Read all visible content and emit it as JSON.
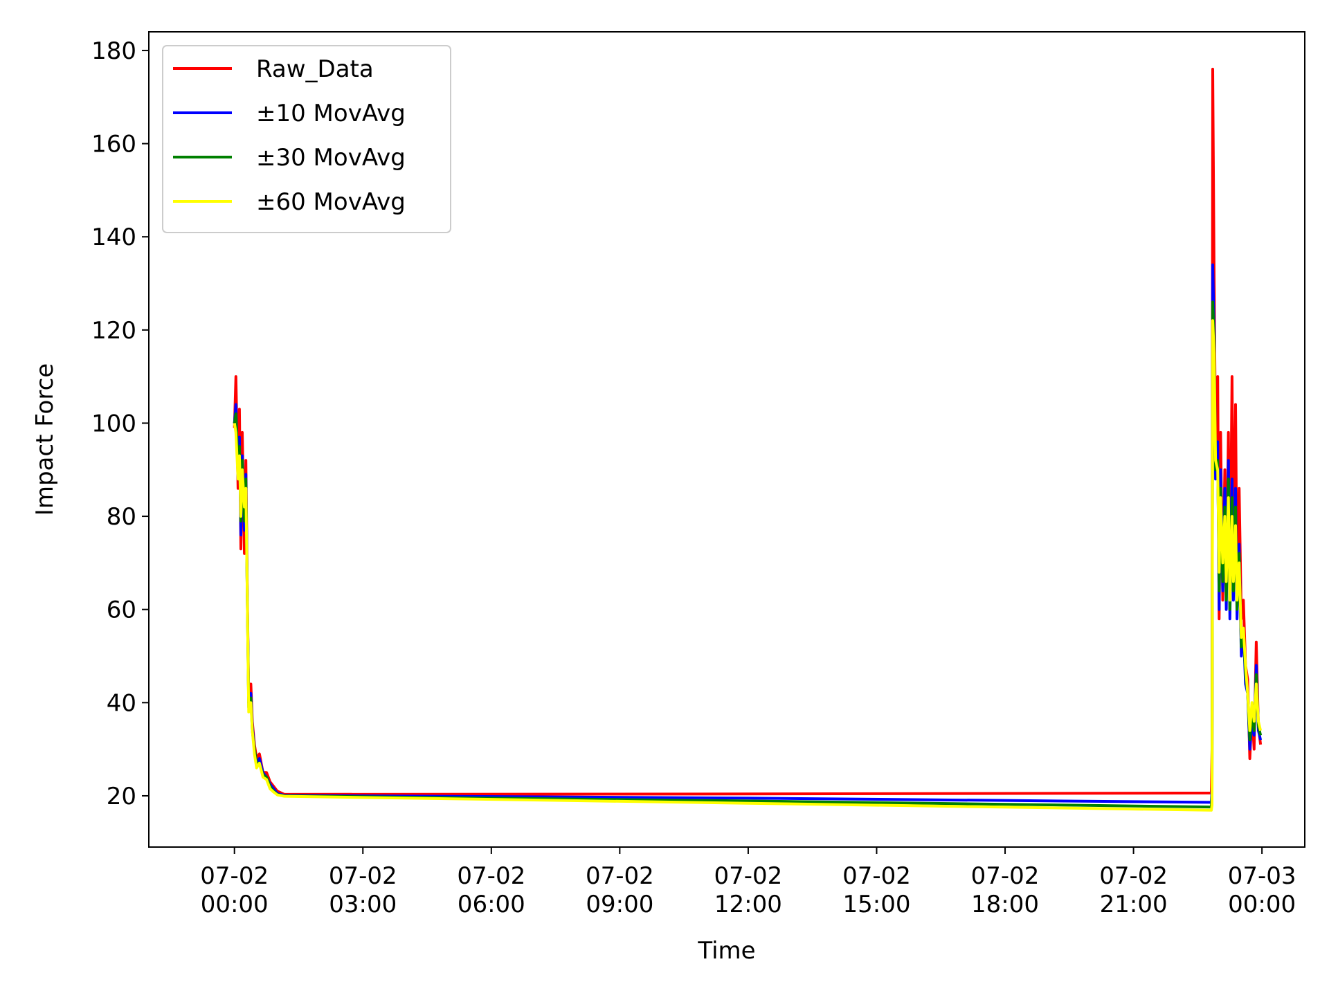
{
  "chart_data": {
    "type": "line",
    "title": "",
    "xlabel": "Time",
    "ylabel": "Impact Force",
    "xlim": [
      "07-01 22:00",
      "07-03 01:00"
    ],
    "ylim": [
      9,
      184
    ],
    "grid": false,
    "legend_position": "top-left",
    "x_ticks": [
      {
        "line1": "07-02",
        "line2": "00:00",
        "time": "07-02 00:00"
      },
      {
        "line1": "07-02",
        "line2": "03:00",
        "time": "07-02 03:00"
      },
      {
        "line1": "07-02",
        "line2": "06:00",
        "time": "07-02 06:00"
      },
      {
        "line1": "07-02",
        "line2": "09:00",
        "time": "07-02 09:00"
      },
      {
        "line1": "07-02",
        "line2": "12:00",
        "time": "07-02 12:00"
      },
      {
        "line1": "07-02",
        "line2": "15:00",
        "time": "07-02 15:00"
      },
      {
        "line1": "07-02",
        "line2": "18:00",
        "time": "07-02 18:00"
      },
      {
        "line1": "07-02",
        "line2": "21:00",
        "time": "07-02 21:00"
      },
      {
        "line1": "07-03",
        "line2": "00:00",
        "time": "07-03 00:00"
      }
    ],
    "y_ticks": [
      20,
      40,
      60,
      80,
      100,
      120,
      140,
      160,
      180
    ],
    "series": [
      {
        "name": "Raw_Data",
        "color": "#ff0000",
        "x": [
          "07-02 00:00",
          "07-02 00:02",
          "07-02 00:05",
          "07-02 00:07",
          "07-02 00:09",
          "07-02 00:11",
          "07-02 00:14",
          "07-02 00:16",
          "07-02 00:18",
          "07-02 00:20",
          "07-02 00:23",
          "07-02 00:25",
          "07-02 00:28",
          "07-02 00:31",
          "07-02 00:35",
          "07-02 00:40",
          "07-02 00:45",
          "07-02 00:50",
          "07-02 00:55",
          "07-02 01:00",
          "07-02 01:10",
          "07-02 12:00",
          "07-02 22:49",
          "07-02 22:50",
          "07-02 22:51",
          "07-02 22:53",
          "07-02 22:55",
          "07-02 22:58",
          "07-02 23:00",
          "07-02 23:02",
          "07-02 23:05",
          "07-02 23:08",
          "07-02 23:10",
          "07-02 23:13",
          "07-02 23:15",
          "07-02 23:18",
          "07-02 23:20",
          "07-02 23:23",
          "07-02 23:25",
          "07-02 23:28",
          "07-02 23:31",
          "07-02 23:34",
          "07-02 23:37",
          "07-02 23:40",
          "07-02 23:43",
          "07-02 23:46",
          "07-02 23:49",
          "07-02 23:52",
          "07-02 23:55",
          "07-02 23:58"
        ],
        "values": [
          99,
          110,
          86,
          103,
          73,
          98,
          72,
          92,
          64,
          40,
          44,
          36,
          31,
          28,
          29,
          25,
          25,
          23,
          22,
          21,
          20.3,
          20.4,
          20.6,
          30,
          176,
          130,
          95,
          110,
          58,
          98,
          62,
          90,
          64,
          98,
          60,
          110,
          72,
          104,
          64,
          86,
          58,
          62,
          48,
          45,
          28,
          38,
          30,
          53,
          35,
          31
        ]
      },
      {
        "name": "±10 MovAvg",
        "color": "#0000ff",
        "x": [
          "07-02 00:00",
          "07-02 00:02",
          "07-02 00:05",
          "07-02 00:07",
          "07-02 00:09",
          "07-02 00:11",
          "07-02 00:14",
          "07-02 00:16",
          "07-02 00:18",
          "07-02 00:20",
          "07-02 00:23",
          "07-02 00:25",
          "07-02 00:28",
          "07-02 00:31",
          "07-02 00:35",
          "07-02 00:40",
          "07-02 00:45",
          "07-02 00:50",
          "07-02 00:55",
          "07-02 01:00",
          "07-02 01:10",
          "07-02 12:00",
          "07-02 22:49",
          "07-02 22:50",
          "07-02 22:51",
          "07-02 22:53",
          "07-02 22:55",
          "07-02 22:58",
          "07-02 23:00",
          "07-02 23:02",
          "07-02 23:05",
          "07-02 23:08",
          "07-02 23:10",
          "07-02 23:13",
          "07-02 23:15",
          "07-02 23:18",
          "07-02 23:20",
          "07-02 23:23",
          "07-02 23:25",
          "07-02 23:28",
          "07-02 23:31",
          "07-02 23:34",
          "07-02 23:37",
          "07-02 23:40",
          "07-02 23:43",
          "07-02 23:46",
          "07-02 23:49",
          "07-02 23:52",
          "07-02 23:55",
          "07-02 23:58"
        ],
        "values": [
          100,
          104,
          88,
          97,
          76,
          93,
          77,
          89,
          62,
          40,
          42,
          35,
          30,
          27,
          28,
          25,
          24,
          22.5,
          21.5,
          20.5,
          20.1,
          19.5,
          18.6,
          22,
          134,
          120,
          88,
          96,
          60,
          90,
          64,
          86,
          60,
          92,
          58,
          88,
          62,
          86,
          58,
          74,
          50,
          56,
          44,
          42,
          30,
          36,
          33,
          48,
          34,
          32
        ]
      },
      {
        "name": "±30 MovAvg",
        "color": "#008000",
        "x": [
          "07-02 00:00",
          "07-02 00:02",
          "07-02 00:05",
          "07-02 00:07",
          "07-02 00:09",
          "07-02 00:11",
          "07-02 00:14",
          "07-02 00:16",
          "07-02 00:18",
          "07-02 00:20",
          "07-02 00:23",
          "07-02 00:25",
          "07-02 00:28",
          "07-02 00:31",
          "07-02 00:35",
          "07-02 00:40",
          "07-02 00:45",
          "07-02 00:50",
          "07-02 00:55",
          "07-02 01:00",
          "07-02 01:10",
          "07-02 12:00",
          "07-02 22:49",
          "07-02 22:50",
          "07-02 22:51",
          "07-02 22:53",
          "07-02 22:55",
          "07-02 22:58",
          "07-02 23:00",
          "07-02 23:02",
          "07-02 23:05",
          "07-02 23:08",
          "07-02 23:10",
          "07-02 23:13",
          "07-02 23:15",
          "07-02 23:18",
          "07-02 23:20",
          "07-02 23:23",
          "07-02 23:25",
          "07-02 23:28",
          "07-02 23:31",
          "07-02 23:34",
          "07-02 23:37",
          "07-02 23:40",
          "07-02 23:43",
          "07-02 23:46",
          "07-02 23:49",
          "07-02 23:52",
          "07-02 23:55",
          "07-02 23:58"
        ],
        "values": [
          100,
          102,
          90,
          95,
          79,
          92,
          79,
          88,
          62,
          39,
          41,
          34,
          30,
          27,
          27,
          24.5,
          24,
          22,
          21,
          20.3,
          20,
          18.9,
          17.6,
          20,
          126,
          118,
          90,
          92,
          64,
          86,
          66,
          82,
          62,
          88,
          60,
          84,
          64,
          82,
          60,
          72,
          52,
          56,
          46,
          42,
          32,
          38,
          34,
          46,
          35,
          33
        ]
      },
      {
        "name": "±60 MovAvg",
        "color": "#ffff00",
        "x": [
          "07-02 00:00",
          "07-02 00:02",
          "07-02 00:05",
          "07-02 00:07",
          "07-02 00:09",
          "07-02 00:11",
          "07-02 00:14",
          "07-02 00:16",
          "07-02 00:18",
          "07-02 00:20",
          "07-02 00:23",
          "07-02 00:25",
          "07-02 00:28",
          "07-02 00:31",
          "07-02 00:35",
          "07-02 00:40",
          "07-02 00:45",
          "07-02 00:50",
          "07-02 00:55",
          "07-02 01:00",
          "07-02 01:10",
          "07-02 12:00",
          "07-02 22:49",
          "07-02 22:50",
          "07-02 22:51",
          "07-02 22:53",
          "07-02 22:55",
          "07-02 22:58",
          "07-02 23:00",
          "07-02 23:02",
          "07-02 23:05",
          "07-02 23:08",
          "07-02 23:10",
          "07-02 23:13",
          "07-02 23:15",
          "07-02 23:18",
          "07-02 23:20",
          "07-02 23:23",
          "07-02 23:25",
          "07-02 23:28",
          "07-02 23:31",
          "07-02 23:34",
          "07-02 23:37",
          "07-02 23:40",
          "07-02 23:43",
          "07-02 23:46",
          "07-02 23:49",
          "07-02 23:52",
          "07-02 23:55",
          "07-02 23:58"
        ],
        "values": [
          100,
          98,
          88,
          93,
          80,
          90,
          82,
          86,
          62,
          38,
          40,
          34,
          29,
          26,
          27,
          24,
          23.5,
          21.5,
          20.8,
          20.2,
          19.9,
          18.4,
          16.9,
          18,
          122,
          115,
          92,
          90,
          68,
          84,
          70,
          80,
          66,
          84,
          62,
          80,
          66,
          78,
          62,
          70,
          54,
          56,
          48,
          42,
          34,
          40,
          36,
          44,
          36,
          34
        ]
      }
    ]
  }
}
